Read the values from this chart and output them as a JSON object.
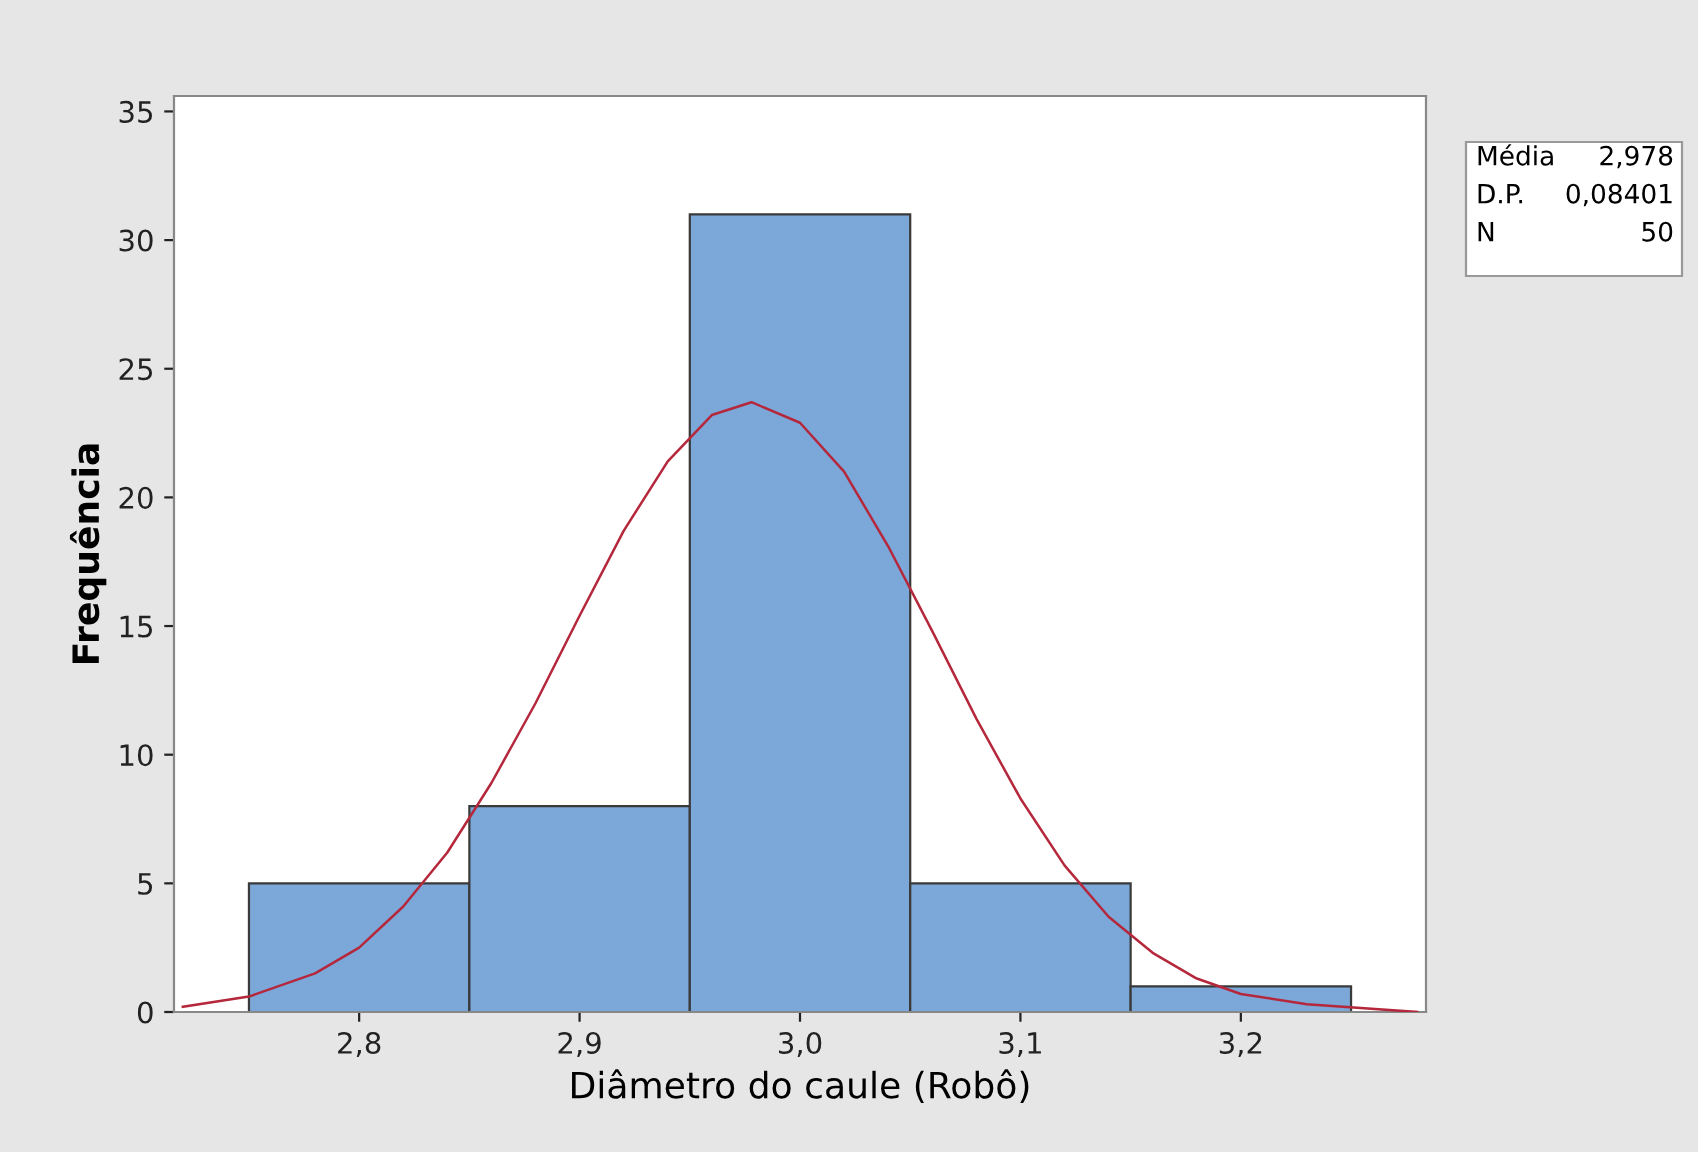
{
  "chart_data": {
    "type": "histogram",
    "xlabel": "Diâmetro do caule (Robô)",
    "ylabel": "Frequência",
    "bins": [
      2.75,
      2.85,
      2.95,
      3.05,
      3.15,
      3.25
    ],
    "values": [
      5,
      8,
      31,
      5,
      1
    ],
    "color": "#7ba7d9",
    "series": [
      {
        "type": "line",
        "color": "#b5283c",
        "x": [
          2.72,
          2.75,
          2.78,
          2.8,
          2.82,
          2.84,
          2.86,
          2.88,
          2.9,
          2.92,
          2.94,
          2.96,
          2.978,
          3.0,
          3.02,
          3.04,
          3.06,
          3.08,
          3.1,
          3.12,
          3.14,
          3.16,
          3.18,
          3.2,
          3.23,
          3.28
        ],
        "values": [
          0.2,
          0.6,
          1.5,
          2.5,
          4.1,
          6.2,
          8.9,
          12.0,
          15.4,
          18.7,
          21.4,
          23.2,
          23.7,
          22.9,
          21.0,
          18.1,
          14.8,
          11.4,
          8.3,
          5.7,
          3.7,
          2.3,
          1.3,
          0.7,
          0.3,
          0.0
        ]
      }
    ],
    "xlim": [
      2.716,
      3.284
    ],
    "ylim": [
      0,
      35.6
    ],
    "xticks": [
      {
        "value": 2.8,
        "label": "2,8"
      },
      {
        "value": 2.9,
        "label": "2,9"
      },
      {
        "value": 3.0,
        "label": "3,0"
      },
      {
        "value": 3.1,
        "label": "3,1"
      },
      {
        "value": 3.2,
        "label": "3,2"
      }
    ],
    "yticks": [
      0,
      5,
      10,
      15,
      20,
      25,
      30,
      35
    ],
    "grid": false,
    "annotations": [
      "Média",
      "2,978",
      "D.P.",
      "0,08401",
      "N",
      "50"
    ]
  }
}
